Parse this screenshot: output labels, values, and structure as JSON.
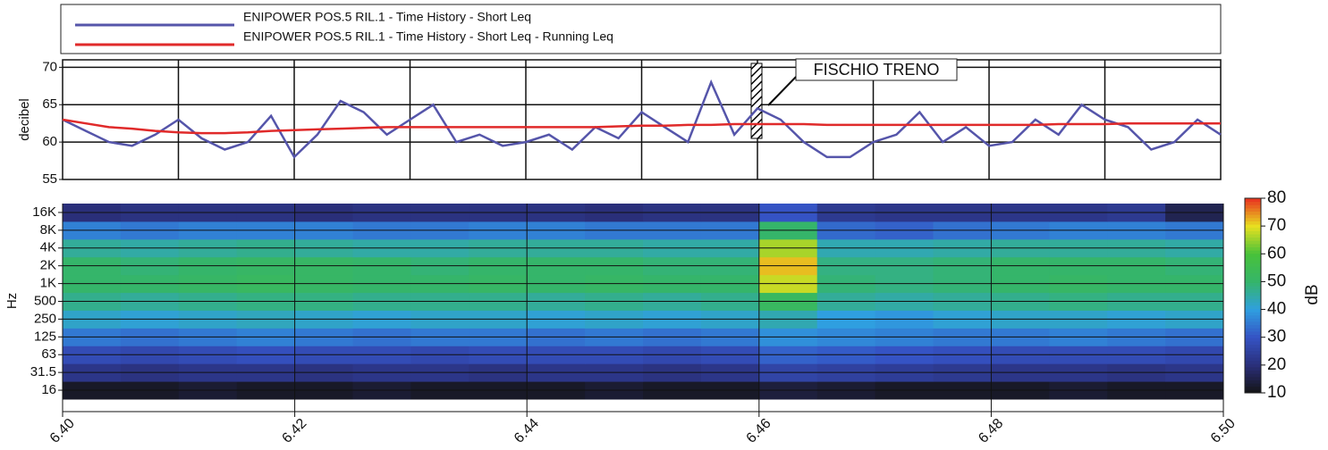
{
  "chart_data": [
    {
      "type": "line",
      "ylabel": "decibel",
      "annotation": "FISCHIO TRENO",
      "x": [
        6.4,
        6.402,
        6.404,
        6.406,
        6.408,
        6.41,
        6.412,
        6.414,
        6.416,
        6.418,
        6.42,
        6.422,
        6.424,
        6.426,
        6.428,
        6.43,
        6.432,
        6.434,
        6.436,
        6.438,
        6.44,
        6.442,
        6.444,
        6.446,
        6.448,
        6.45,
        6.452,
        6.454,
        6.456,
        6.458,
        6.46,
        6.462,
        6.464,
        6.466,
        6.468,
        6.47,
        6.472,
        6.474,
        6.476,
        6.478,
        6.48,
        6.482,
        6.484,
        6.486,
        6.488,
        6.49,
        6.492,
        6.494,
        6.496,
        6.498,
        6.5
      ],
      "series": [
        {
          "name": "ENIPOWER POS.5 RIL.1 - Time History - Short Leq",
          "color": "#5555aa",
          "values": [
            63,
            61.5,
            60,
            59.5,
            61,
            63,
            60.5,
            59,
            60,
            63.5,
            58,
            61,
            65.5,
            64,
            61,
            63,
            65,
            60,
            61,
            59.5,
            60,
            61,
            59,
            62,
            60.5,
            64,
            62,
            60,
            68,
            61,
            64.5,
            63,
            60,
            58,
            58,
            60,
            61,
            64,
            60,
            62,
            59.5,
            60,
            63,
            61,
            65,
            63,
            62,
            59,
            60,
            63,
            61
          ]
        },
        {
          "name": "ENIPOWER POS.5 RIL.1 - Time History - Short Leq - Running Leq",
          "color": "#e02a2a",
          "values": [
            63,
            62.5,
            62,
            61.8,
            61.5,
            61.3,
            61.2,
            61.2,
            61.3,
            61.5,
            61.6,
            61.7,
            61.8,
            61.9,
            62,
            62,
            62,
            62,
            62,
            62,
            62,
            62,
            62,
            62,
            62.1,
            62.2,
            62.2,
            62.3,
            62.3,
            62.4,
            62.4,
            62.4,
            62.4,
            62.3,
            62.3,
            62.3,
            62.3,
            62.3,
            62.3,
            62.3,
            62.3,
            62.3,
            62.3,
            62.4,
            62.4,
            62.4,
            62.5,
            62.5,
            62.5,
            62.5,
            62.5
          ]
        }
      ],
      "xlim": [
        6.4,
        6.5
      ],
      "xticks": [
        6.41,
        6.42,
        6.43,
        6.44,
        6.45,
        6.46,
        6.47,
        6.48,
        6.49
      ],
      "ylim": [
        55,
        71
      ],
      "yticks": [
        55,
        60,
        65,
        70
      ],
      "grid": true
    },
    {
      "type": "heatmap",
      "ylabel": "Hz",
      "zlabel": "dB",
      "categories": [
        "16",
        "31.5",
        "63",
        "125",
        "250",
        "500",
        "1K",
        "2K",
        "4K",
        "8K",
        "16K"
      ],
      "x": [
        6.4,
        6.405,
        6.41,
        6.415,
        6.42,
        6.425,
        6.43,
        6.435,
        6.44,
        6.445,
        6.45,
        6.455,
        6.46,
        6.465,
        6.47,
        6.475,
        6.48,
        6.485,
        6.49,
        6.495
      ],
      "values": [
        [
          12,
          12,
          13,
          12,
          12,
          13,
          12,
          12,
          12,
          13,
          12,
          12,
          14,
          13,
          12,
          12,
          12,
          13,
          12,
          12
        ],
        [
          22,
          21,
          22,
          22,
          21,
          22,
          22,
          21,
          22,
          22,
          21,
          22,
          26,
          25,
          24,
          23,
          22,
          22,
          21,
          22
        ],
        [
          28,
          27,
          28,
          29,
          28,
          28,
          27,
          28,
          28,
          28,
          27,
          28,
          32,
          31,
          30,
          29,
          28,
          28,
          28,
          27
        ],
        [
          35,
          34,
          35,
          36,
          35,
          34,
          35,
          35,
          34,
          35,
          34,
          35,
          38,
          37,
          36,
          35,
          35,
          36,
          35,
          34
        ],
        [
          42,
          41,
          42,
          43,
          42,
          41,
          42,
          42,
          41,
          42,
          41,
          42,
          44,
          40,
          39,
          41,
          42,
          42,
          41,
          42
        ],
        [
          47,
          46,
          47,
          48,
          48,
          47,
          47,
          47,
          46,
          47,
          46,
          47,
          52,
          46,
          45,
          46,
          47,
          48,
          47,
          47
        ],
        [
          50,
          50,
          51,
          52,
          51,
          50,
          50,
          51,
          50,
          51,
          50,
          50,
          68,
          49,
          48,
          49,
          50,
          51,
          50,
          50
        ],
        [
          50,
          49,
          50,
          51,
          51,
          50,
          49,
          50,
          50,
          50,
          49,
          49,
          72,
          48,
          48,
          49,
          50,
          50,
          50,
          49
        ],
        [
          46,
          45,
          46,
          47,
          46,
          45,
          45,
          46,
          46,
          46,
          45,
          45,
          66,
          44,
          44,
          45,
          46,
          46,
          46,
          45
        ],
        [
          36,
          35,
          36,
          36,
          36,
          35,
          35,
          36,
          36,
          35,
          35,
          35,
          50,
          33,
          32,
          34,
          35,
          36,
          36,
          35
        ],
        [
          20,
          21,
          21,
          21,
          20,
          21,
          21,
          21,
          21,
          20,
          21,
          21,
          30,
          23,
          22,
          22,
          22,
          22,
          23,
          16
        ]
      ],
      "xlim": [
        6.4,
        6.5
      ],
      "xticks": [
        {
          "value": 6.4,
          "label": "6.40"
        },
        6.42,
        6.44,
        6.46,
        6.48,
        {
          "value": 6.5,
          "label": "6.50"
        }
      ],
      "zlim": [
        10,
        80
      ],
      "zticks": [
        10,
        20,
        30,
        40,
        50,
        60,
        70,
        80
      ],
      "colormap": [
        "#141414",
        "#2a2f7a",
        "#3553c4",
        "#2f9fe0",
        "#35b56a",
        "#48c23a",
        "#e8e020",
        "#e83020"
      ]
    }
  ]
}
